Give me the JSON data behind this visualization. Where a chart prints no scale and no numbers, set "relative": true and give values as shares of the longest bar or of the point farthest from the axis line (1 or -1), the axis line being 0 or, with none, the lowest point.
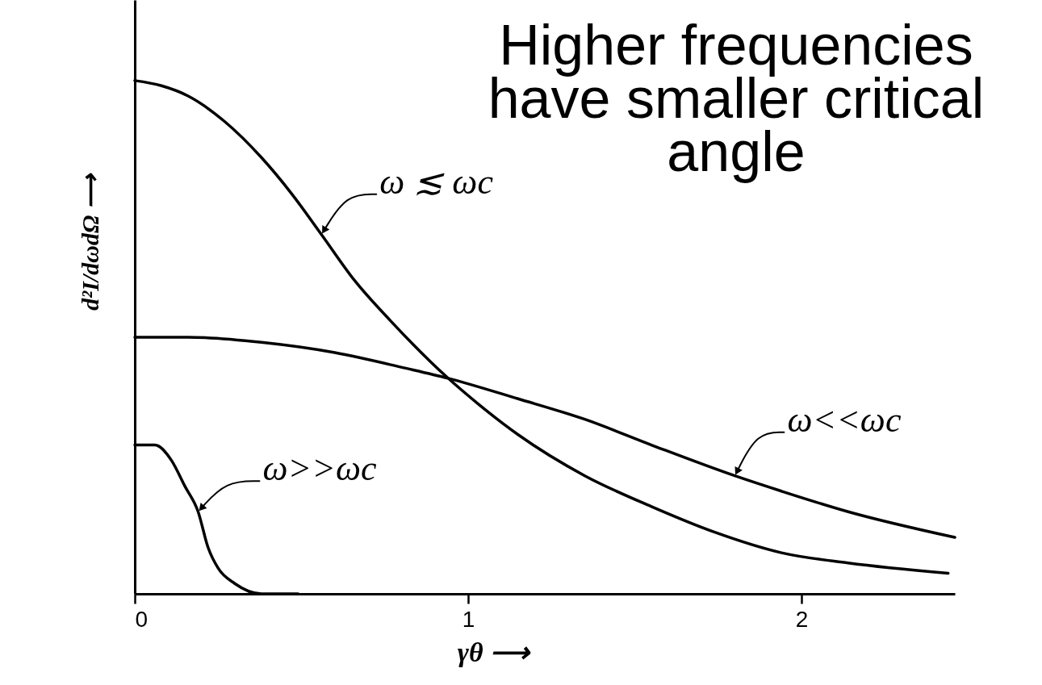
{
  "chart_data": {
    "type": "line",
    "relative": true,
    "xlabel": "γθ ⟶",
    "ylabel": "d²I/dωdΩ ⟶",
    "annotations": [
      "Higher frequencies have smaller critical angle"
    ],
    "xlim": [
      0,
      2.46
    ],
    "xticks": [
      0,
      1,
      2
    ],
    "series": [
      {
        "name": "ω ≲ ωc",
        "color": "#000000",
        "x": [
          0,
          0.08,
          0.16,
          0.27,
          0.38,
          0.47,
          0.56,
          0.66,
          0.77,
          0.94,
          1.03,
          1.15,
          1.35,
          1.55,
          1.74,
          1.94,
          2.14,
          2.44
        ],
        "values": [
          1,
          0.99,
          0.97,
          0.92,
          0.85,
          0.78,
          0.7,
          0.61,
          0.53,
          0.42,
          0.37,
          0.31,
          0.23,
          0.17,
          0.12,
          0.08,
          0.06,
          0.04
        ]
      },
      {
        "name": "ω<<ωc",
        "color": "#000000",
        "x": [
          0,
          0.16,
          0.38,
          0.6,
          0.81,
          0.94,
          1.15,
          1.35,
          1.55,
          1.8,
          1.94,
          2.14,
          2.46
        ],
        "values": [
          0.5,
          0.5,
          0.49,
          0.47,
          0.44,
          0.42,
          0.38,
          0.34,
          0.29,
          0.23,
          0.2,
          0.16,
          0.11
        ]
      },
      {
        "name": "ω>>ωc",
        "color": "#000000",
        "x": [
          0,
          0.06,
          0.11,
          0.15,
          0.19,
          0.22,
          0.25,
          0.3,
          0.38,
          0.49
        ],
        "values": [
          0.29,
          0.29,
          0.26,
          0.21,
          0.16,
          0.09,
          0.05,
          0.02,
          0,
          0
        ]
      }
    ]
  }
}
